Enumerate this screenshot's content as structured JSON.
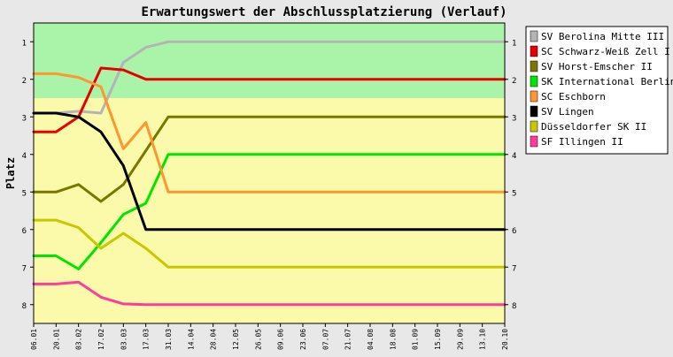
{
  "chart_data": {
    "type": "line",
    "title": "Erwartungswert der Abschlussplatzierung (Verlauf)",
    "ylabel": "Platz",
    "xlabel": "",
    "ylim": [
      0.5,
      8.5
    ],
    "y_inverted": true,
    "yticks": [
      1,
      2,
      3,
      4,
      5,
      6,
      7,
      8
    ],
    "grid": false,
    "legend": "right",
    "background_bands": [
      {
        "from": 0.5,
        "to": 2.5,
        "color": "#aaf4aa"
      },
      {
        "from": 2.5,
        "to": 8.5,
        "color": "#fafaaa"
      }
    ],
    "categories": [
      "06.01",
      "20.01",
      "03.02",
      "17.02",
      "03.03",
      "17.03",
      "31.03",
      "14.04",
      "28.04",
      "12.05",
      "26.05",
      "09.06",
      "23.06",
      "07.07",
      "21.07",
      "04.08",
      "18.08",
      "01.09",
      "15.09",
      "29.09",
      "13.10",
      "20.10"
    ],
    "series": [
      {
        "name": "SV Berolina Mitte III",
        "color": "#b4b4b4",
        "values": [
          2.9,
          2.9,
          2.85,
          2.9,
          1.55,
          1.15,
          1.0,
          1.0,
          1.0,
          1.0,
          1.0,
          1.0,
          1.0,
          1.0,
          1.0,
          1.0,
          1.0,
          1.0,
          1.0,
          1.0,
          1.0,
          1.0
        ]
      },
      {
        "name": "SC Schwarz-Weiß Zell I",
        "color": "#e60000",
        "values": [
          3.4,
          3.4,
          3.0,
          1.7,
          1.75,
          2.0,
          2.0,
          2.0,
          2.0,
          2.0,
          2.0,
          2.0,
          2.0,
          2.0,
          2.0,
          2.0,
          2.0,
          2.0,
          2.0,
          2.0,
          2.0,
          2.0
        ]
      },
      {
        "name": "SV Horst-Emscher II",
        "color": "#787800",
        "values": [
          5.0,
          5.0,
          4.8,
          5.25,
          4.8,
          3.9,
          3.0,
          3.0,
          3.0,
          3.0,
          3.0,
          3.0,
          3.0,
          3.0,
          3.0,
          3.0,
          3.0,
          3.0,
          3.0,
          3.0,
          3.0,
          3.0
        ]
      },
      {
        "name": "SK International Berlin",
        "color": "#00e600",
        "values": [
          6.7,
          6.7,
          7.05,
          6.35,
          5.6,
          5.3,
          4.0,
          4.0,
          4.0,
          4.0,
          4.0,
          4.0,
          4.0,
          4.0,
          4.0,
          4.0,
          4.0,
          4.0,
          4.0,
          4.0,
          4.0,
          4.0
        ]
      },
      {
        "name": "SC Eschborn",
        "color": "#ff9632",
        "values": [
          1.85,
          1.85,
          1.95,
          2.2,
          3.85,
          3.15,
          5.0,
          5.0,
          5.0,
          5.0,
          5.0,
          5.0,
          5.0,
          5.0,
          5.0,
          5.0,
          5.0,
          5.0,
          5.0,
          5.0,
          5.0,
          5.0
        ]
      },
      {
        "name": "SV Lingen",
        "color": "#000000",
        "values": [
          2.9,
          2.9,
          3.0,
          3.4,
          4.3,
          6.0,
          6.0,
          6.0,
          6.0,
          6.0,
          6.0,
          6.0,
          6.0,
          6.0,
          6.0,
          6.0,
          6.0,
          6.0,
          6.0,
          6.0,
          6.0,
          6.0
        ]
      },
      {
        "name": "Düsseldorfer SK II",
        "color": "#c8c800",
        "values": [
          5.75,
          5.75,
          5.95,
          6.5,
          6.1,
          6.5,
          7.0,
          7.0,
          7.0,
          7.0,
          7.0,
          7.0,
          7.0,
          7.0,
          7.0,
          7.0,
          7.0,
          7.0,
          7.0,
          7.0,
          7.0,
          7.0
        ]
      },
      {
        "name": "SF Illingen II",
        "color": "#ff3c9b",
        "values": [
          7.45,
          7.45,
          7.4,
          7.8,
          7.98,
          8.0,
          8.0,
          8.0,
          8.0,
          8.0,
          8.0,
          8.0,
          8.0,
          8.0,
          8.0,
          8.0,
          8.0,
          8.0,
          8.0,
          8.0,
          8.0,
          8.0
        ]
      }
    ]
  }
}
